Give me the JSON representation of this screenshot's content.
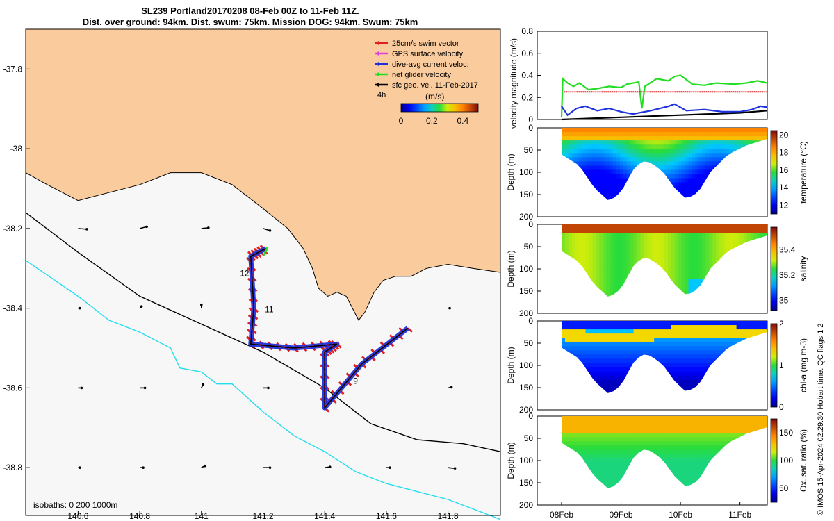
{
  "title_line1": "SL239 Portland20170208 08-Feb 00Z to 11-Feb 11Z.",
  "title_line2": "Dist. over ground: 94km. Dist. swum: 75km. Mission DOG: 94km. Swum: 75km",
  "credit": "© IMOS 15-Apr-2024 02:29:30 Hobart time. QC flags 1  2",
  "colors": {
    "land": "#FACB9C",
    "sea": "#F7F7F7",
    "swim": "#E02020",
    "gps": "#E040E0",
    "current": "#1E32DC",
    "glider": "#22DD22",
    "geo": "#000000",
    "isobath200": "#000000",
    "isobath1000": "#22DDEE"
  },
  "chart_data": [
    {
      "type": "map",
      "x_ticks": [
        140.6,
        140.8,
        141,
        141.2,
        141.4,
        141.6,
        141.8
      ],
      "y_ticks": [
        -37.8,
        -38,
        -38.2,
        -38.4,
        -38.6,
        -38.8
      ],
      "xlim": [
        140.43,
        141.97
      ],
      "ylim": [
        -38.92,
        -37.7
      ],
      "legend": [
        {
          "label": "25cm/s swim vector",
          "color": "#E02020"
        },
        {
          "label": "GPS surface velocity",
          "color": "#E040E0"
        },
        {
          "label": "dive-avg current veloc.",
          "color": "#1E32DC"
        },
        {
          "label": "net glider velocity",
          "color": "#22DD22"
        },
        {
          "label": "sfc geo. vel. 11-Feb-2017",
          "color": "#000000"
        }
      ],
      "legend_placement": "top-right",
      "scale_label": "4h",
      "colorbar": {
        "label": "(m/s)",
        "ticks": [
          "0",
          "0.2",
          "0.4"
        ],
        "range": [
          0,
          0.5
        ]
      },
      "isobath_label": "isobaths: 0   200  1000m",
      "day_labels": [
        {
          "text": "12",
          "lon": 141.14,
          "lat": -38.32
        },
        {
          "text": "11",
          "lon": 141.22,
          "lat": -38.41
        },
        {
          "text": "9",
          "lon": 141.5,
          "lat": -38.59
        }
      ],
      "glider_track": [
        [
          141.67,
          -38.45
        ],
        [
          141.52,
          -38.54
        ],
        [
          141.4,
          -38.65
        ],
        [
          141.4,
          -38.51
        ],
        [
          141.44,
          -38.49
        ],
        [
          141.3,
          -38.5
        ],
        [
          141.16,
          -38.49
        ],
        [
          141.17,
          -38.4
        ],
        [
          141.16,
          -38.27
        ],
        [
          141.21,
          -38.25
        ]
      ],
      "geo_vectors": [
        {
          "lon": 140.6,
          "lat": -38.2,
          "u": 0.25,
          "v": -0.02
        },
        {
          "lon": 140.8,
          "lat": -38.2,
          "u": 0.2,
          "v": 0.05
        },
        {
          "lon": 141.0,
          "lat": -38.2,
          "u": 0.2,
          "v": 0.02
        },
        {
          "lon": 141.2,
          "lat": -38.2,
          "u": 0.2,
          "v": -0.06
        },
        {
          "lon": 140.6,
          "lat": -38.4,
          "u": 0.05,
          "v": 0.0
        },
        {
          "lon": 140.8,
          "lat": -38.4,
          "u": 0.05,
          "v": 0.05
        },
        {
          "lon": 141.0,
          "lat": -38.4,
          "u": 0.0,
          "v": 0.1
        },
        {
          "lon": 141.8,
          "lat": -38.4,
          "u": 0.05,
          "v": 0.0
        },
        {
          "lon": 140.6,
          "lat": -38.6,
          "u": 0.1,
          "v": 0.0
        },
        {
          "lon": 140.8,
          "lat": -38.6,
          "u": 0.15,
          "v": 0.0
        },
        {
          "lon": 141.0,
          "lat": -38.6,
          "u": 0.05,
          "v": 0.1
        },
        {
          "lon": 141.2,
          "lat": -38.6,
          "u": 0.15,
          "v": 0.0
        },
        {
          "lon": 141.8,
          "lat": -38.6,
          "u": 0.1,
          "v": 0.02
        },
        {
          "lon": 140.6,
          "lat": -38.8,
          "u": 0.05,
          "v": 0.0
        },
        {
          "lon": 140.8,
          "lat": -38.8,
          "u": 0.1,
          "v": 0.0
        },
        {
          "lon": 141.0,
          "lat": -38.8,
          "u": 0.1,
          "v": 0.05
        },
        {
          "lon": 141.2,
          "lat": -38.8,
          "u": 0.2,
          "v": 0.0
        },
        {
          "lon": 141.4,
          "lat": -38.8,
          "u": 0.15,
          "v": 0.02
        },
        {
          "lon": 141.6,
          "lat": -38.8,
          "u": 0.1,
          "v": 0.0
        },
        {
          "lon": 141.8,
          "lat": -38.8,
          "u": 0.2,
          "v": -0.02
        }
      ],
      "coast": [
        [
          140.43,
          -38.06
        ],
        [
          140.5,
          -38.09
        ],
        [
          140.6,
          -38.13
        ],
        [
          140.7,
          -38.11
        ],
        [
          140.8,
          -38.09
        ],
        [
          140.9,
          -38.06
        ],
        [
          141.0,
          -38.06
        ],
        [
          141.1,
          -38.09
        ],
        [
          141.2,
          -38.15
        ],
        [
          141.28,
          -38.2
        ],
        [
          141.33,
          -38.25
        ],
        [
          141.36,
          -38.3
        ],
        [
          141.38,
          -38.35
        ],
        [
          141.41,
          -38.37
        ],
        [
          141.44,
          -38.36
        ],
        [
          141.47,
          -38.37
        ],
        [
          141.49,
          -38.4
        ],
        [
          141.51,
          -38.43
        ],
        [
          141.53,
          -38.41
        ],
        [
          141.56,
          -38.36
        ],
        [
          141.59,
          -38.33
        ],
        [
          141.63,
          -38.32
        ],
        [
          141.68,
          -38.32
        ],
        [
          141.73,
          -38.3
        ],
        [
          141.8,
          -38.29
        ],
        [
          141.88,
          -38.3
        ],
        [
          141.97,
          -38.31
        ]
      ],
      "isobath200": [
        [
          140.43,
          -38.16
        ],
        [
          140.6,
          -38.26
        ],
        [
          140.8,
          -38.37
        ],
        [
          141.0,
          -38.44
        ],
        [
          141.2,
          -38.51
        ],
        [
          141.4,
          -38.6
        ],
        [
          141.55,
          -38.69
        ],
        [
          141.7,
          -38.73
        ],
        [
          141.85,
          -38.74
        ],
        [
          141.97,
          -38.76
        ]
      ],
      "isobath1000": [
        [
          140.43,
          -38.28
        ],
        [
          140.6,
          -38.37
        ],
        [
          140.7,
          -38.43
        ],
        [
          140.8,
          -38.46
        ],
        [
          140.9,
          -38.5
        ],
        [
          140.93,
          -38.55
        ],
        [
          141.0,
          -38.56
        ],
        [
          141.05,
          -38.59
        ],
        [
          141.1,
          -38.59
        ],
        [
          141.2,
          -38.66
        ],
        [
          141.3,
          -38.72
        ],
        [
          141.4,
          -38.76
        ],
        [
          141.5,
          -38.81
        ],
        [
          141.6,
          -38.84
        ],
        [
          141.7,
          -38.86
        ],
        [
          141.8,
          -38.88
        ],
        [
          141.97,
          -38.93
        ]
      ]
    },
    {
      "type": "line",
      "ylabel": "velocity magnitude (m/s)",
      "ylim": [
        0,
        0.8
      ],
      "y_ticks": [
        0,
        0.2,
        0.4,
        0.6,
        0.8
      ],
      "x_days": [
        0,
        3.46
      ],
      "series": [
        {
          "color": "#22DD22",
          "values": [
            [
              0,
              0.02
            ],
            [
              0.02,
              0.37
            ],
            [
              0.1,
              0.33
            ],
            [
              0.2,
              0.3
            ],
            [
              0.3,
              0.33
            ],
            [
              0.45,
              0.27
            ],
            [
              0.6,
              0.28
            ],
            [
              0.8,
              0.3
            ],
            [
              1.0,
              0.29
            ],
            [
              1.1,
              0.32
            ],
            [
              1.3,
              0.34
            ],
            [
              1.35,
              0.1
            ],
            [
              1.4,
              0.3
            ],
            [
              1.6,
              0.37
            ],
            [
              1.8,
              0.35
            ],
            [
              1.9,
              0.39
            ],
            [
              2.0,
              0.4
            ],
            [
              2.2,
              0.32
            ],
            [
              2.4,
              0.31
            ],
            [
              2.6,
              0.33
            ],
            [
              2.9,
              0.32
            ],
            [
              3.1,
              0.33
            ],
            [
              3.3,
              0.35
            ],
            [
              3.46,
              0.33
            ]
          ]
        },
        {
          "color": "#E02020",
          "values": [
            [
              0.04,
              0.25
            ],
            [
              3.46,
              0.25
            ]
          ]
        },
        {
          "color": "#1E32DC",
          "values": [
            [
              0,
              0.12
            ],
            [
              0.1,
              0.04
            ],
            [
              0.25,
              0.1
            ],
            [
              0.4,
              0.12
            ],
            [
              0.6,
              0.08
            ],
            [
              0.8,
              0.1
            ],
            [
              1.0,
              0.07
            ],
            [
              1.2,
              0.05
            ],
            [
              1.5,
              0.08
            ],
            [
              1.8,
              0.12
            ],
            [
              1.9,
              0.14
            ],
            [
              2.1,
              0.08
            ],
            [
              2.4,
              0.09
            ],
            [
              2.7,
              0.07
            ],
            [
              3.0,
              0.07
            ],
            [
              3.2,
              0.09
            ],
            [
              3.35,
              0.12
            ],
            [
              3.46,
              0.11
            ]
          ]
        },
        {
          "color": "#000000",
          "values": [
            [
              0,
              0.0
            ],
            [
              0.5,
              0.01
            ],
            [
              1.0,
              0.02
            ],
            [
              1.5,
              0.03
            ],
            [
              2.0,
              0.04
            ],
            [
              2.5,
              0.05
            ],
            [
              3.0,
              0.06
            ],
            [
              3.46,
              0.08
            ]
          ]
        }
      ]
    },
    {
      "type": "heatmap",
      "ylabel": "Depth (m)",
      "ylim": [
        200,
        0
      ],
      "y_ticks": [
        0,
        50,
        100,
        150,
        200
      ],
      "colorbar_label": "temperature (°C)",
      "colorbar_ticks": [
        12,
        14,
        16,
        18,
        20
      ],
      "clim": [
        11,
        20.5
      ]
    },
    {
      "type": "heatmap",
      "ylabel": "Depth (m)",
      "ylim": [
        200,
        0
      ],
      "y_ticks": [
        0,
        50,
        100,
        150,
        200
      ],
      "colorbar_label": "salinity",
      "colorbar_ticks": [
        35,
        35.2,
        35.4
      ],
      "clim": [
        34.92,
        35.58
      ]
    },
    {
      "type": "heatmap",
      "ylabel": "Depth (m)",
      "ylim": [
        200,
        0
      ],
      "y_ticks": [
        0,
        50,
        100,
        150,
        200
      ],
      "colorbar_label": "chl-a (mg m-3)",
      "colorbar_ticks": [
        0,
        1,
        2
      ],
      "clim": [
        0,
        2
      ]
    },
    {
      "type": "heatmap",
      "ylabel": "Depth (m)",
      "ylim": [
        200,
        0
      ],
      "y_ticks": [
        0,
        50,
        100,
        150,
        200
      ],
      "colorbar_label": "Ox. sat. ratio (%)",
      "colorbar_ticks": [
        50,
        100,
        150
      ],
      "clim": [
        25,
        175
      ],
      "x_tick_labels": [
        "08Feb",
        "09Feb",
        "10Feb",
        "11Feb"
      ],
      "x_tick_days": [
        0,
        1,
        2,
        3
      ]
    }
  ],
  "bathymetry_bottom_m": [
    [
      0,
      60
    ],
    [
      0.3,
      85
    ],
    [
      0.55,
      135
    ],
    [
      0.8,
      165
    ],
    [
      1.0,
      145
    ],
    [
      1.2,
      95
    ],
    [
      1.35,
      75
    ],
    [
      1.5,
      78
    ],
    [
      1.7,
      98
    ],
    [
      1.9,
      135
    ],
    [
      2.1,
      160
    ],
    [
      2.3,
      145
    ],
    [
      2.5,
      100
    ],
    [
      2.8,
      60
    ],
    [
      3.1,
      40
    ],
    [
      3.46,
      25
    ]
  ]
}
